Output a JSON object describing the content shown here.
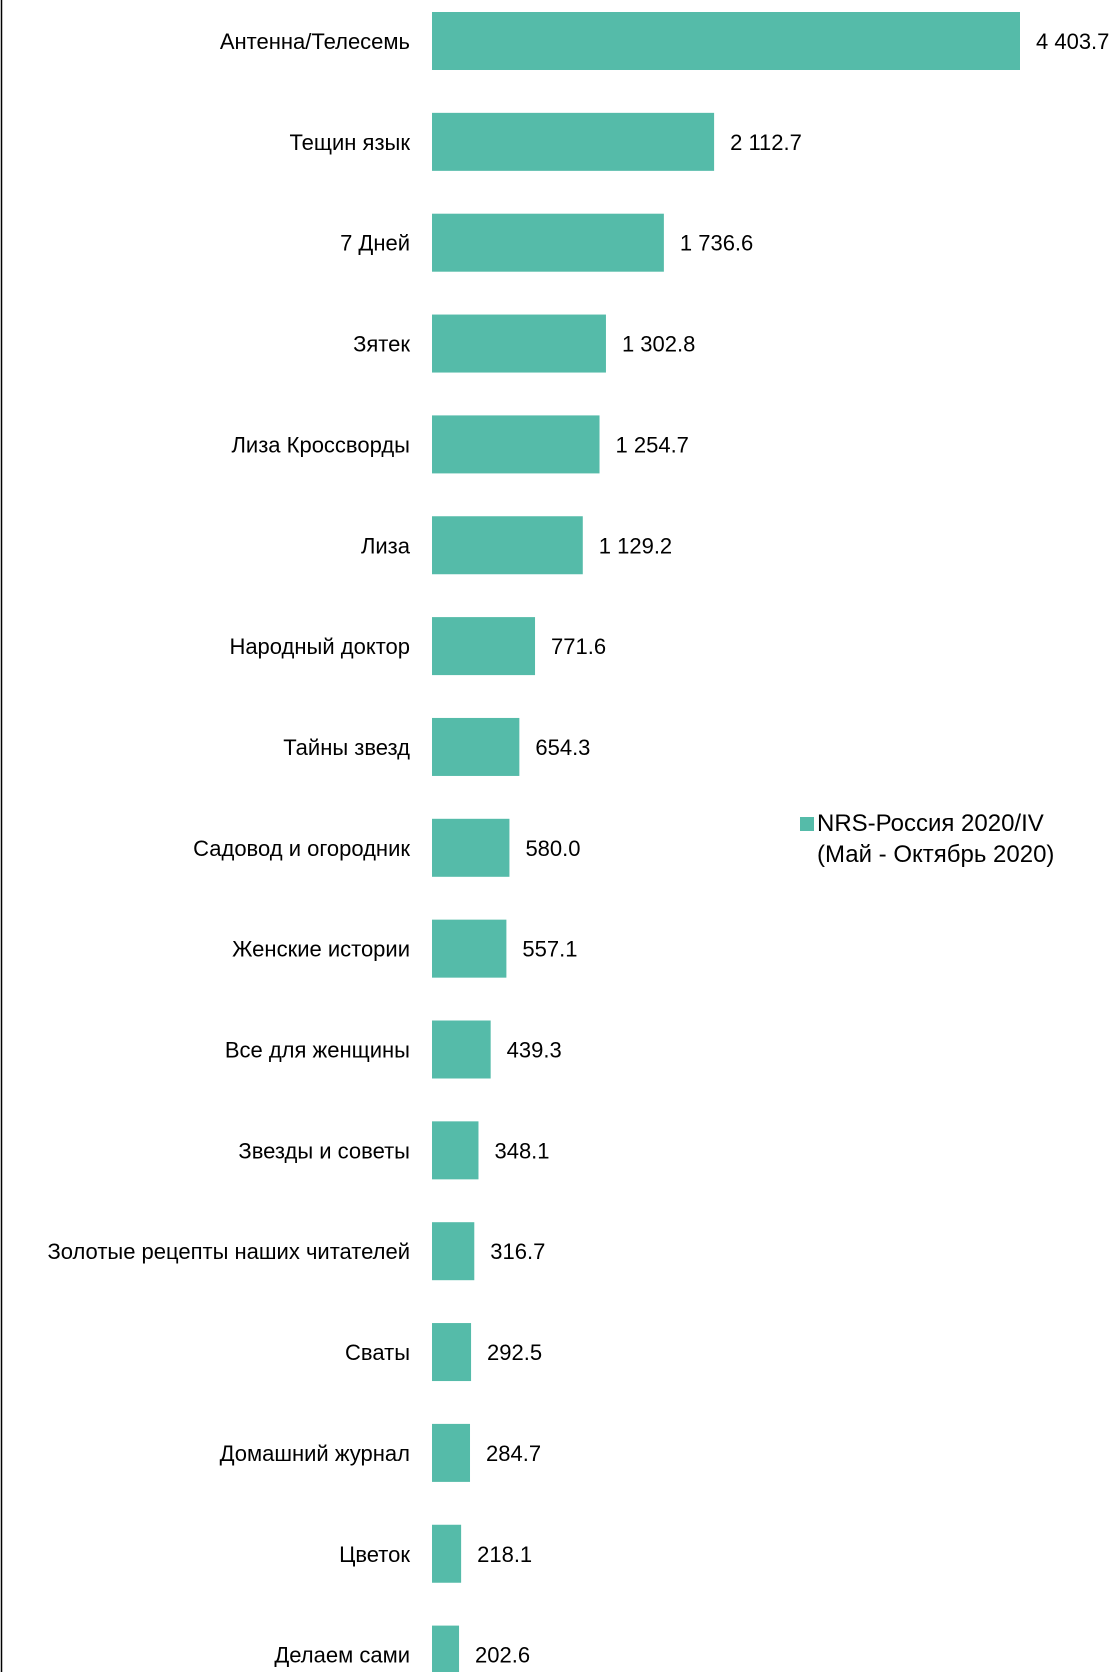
{
  "chart_data": {
    "type": "bar",
    "orientation": "horizontal",
    "categories": [
      "Антенна/Телесемь",
      "Тещин язык",
      "7 Дней",
      "Зятек",
      "Лиза Кроссворды",
      "Лиза",
      "Народный доктор",
      "Тайны звезд",
      "Садовод и огородник",
      "Женские истории",
      "Все для женщины",
      "Звезды и советы",
      "Золотые рецепты наших читателей",
      "Сваты",
      "Домашний журнал",
      "Цветок",
      "Делаем сами"
    ],
    "series": [
      {
        "name_lines": [
          "NRS-Россия 2020/IV",
          "(Май - Октябрь 2020)"
        ],
        "color": "#55BBA9",
        "values": [
          4403.7,
          2112.7,
          1736.6,
          1302.8,
          1254.7,
          1129.2,
          771.6,
          654.3,
          580.0,
          557.1,
          439.3,
          348.1,
          316.7,
          292.5,
          284.7,
          218.1,
          202.6
        ],
        "value_labels": [
          "4 403.7",
          "2 112.7",
          "1 736.6",
          "1 302.8",
          "1 254.7",
          "1 129.2",
          "771.6",
          "654.3",
          "580.0",
          "557.1",
          "439.3",
          "348.1",
          "316.7",
          "292.5",
          "284.7",
          "218.1",
          "202.6"
        ]
      }
    ],
    "xlim": [
      0,
      4403.7
    ],
    "grid": false,
    "legend_position": "right"
  }
}
